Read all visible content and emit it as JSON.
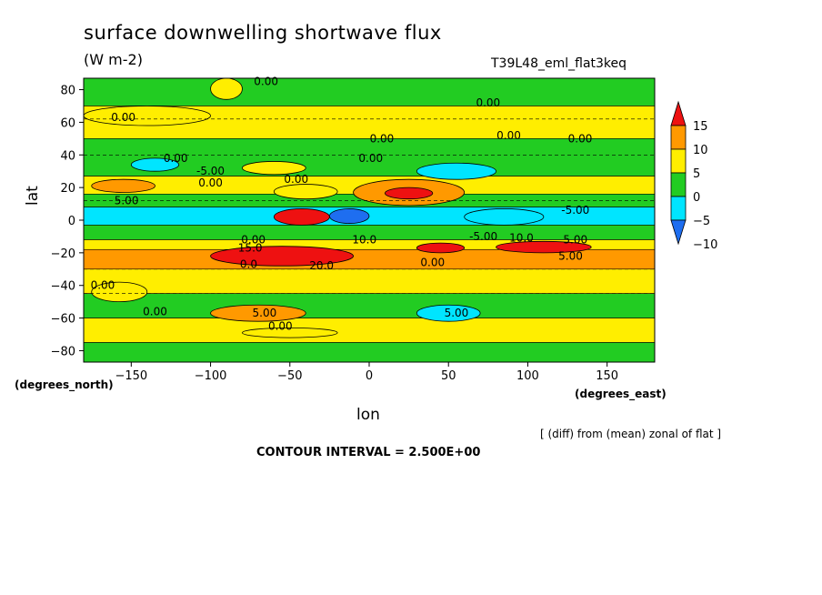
{
  "header": {
    "title": "surface downwelling shortwave flux",
    "units": "(W m-2)",
    "run": "T39L48_eml_flat3keq"
  },
  "footer": {
    "footnote": "[ (diff) from (mean) zonal of flat ]",
    "contour_interval": "CONTOUR INTERVAL = 2.500E+00"
  },
  "chart_data": {
    "type": "heatmap",
    "title": "surface downwelling shortwave flux",
    "units": "(W m-2)",
    "run": "T39L48_eml_flat3keq",
    "xlabel": "lon",
    "ylabel": "lat",
    "xunit": "(degrees_east)",
    "yunit": "(degrees_north)",
    "xlim": [
      -180,
      180
    ],
    "ylim": [
      -87,
      87
    ],
    "xticks": [
      -150,
      -100,
      -50,
      0,
      50,
      100,
      150
    ],
    "yticks": [
      -80,
      -60,
      -40,
      -20,
      0,
      20,
      40,
      60,
      80
    ],
    "contour_interval": 2.5,
    "colorbar": {
      "levels": [
        -10,
        -5,
        0,
        5,
        10,
        15
      ],
      "colors": [
        "#1e6ef0",
        "#00e5ff",
        "#22cc22",
        "#ffee00",
        "#ff9900",
        "#ee1111"
      ],
      "arrow_colors": {
        "low": "#1e6ef0",
        "high": "#ee1111"
      }
    },
    "bands": [
      {
        "lat": [
          70,
          87
        ],
        "value": -2.5
      },
      {
        "lat": [
          50,
          70
        ],
        "value": 0
      },
      {
        "lat": [
          27,
          50
        ],
        "value": -2.5
      },
      {
        "lat": [
          16,
          27
        ],
        "value": 2.5
      },
      {
        "lat": [
          8,
          16
        ],
        "value": -2.5
      },
      {
        "lat": [
          -3,
          8
        ],
        "value": -6
      },
      {
        "lat": [
          -12,
          -3
        ],
        "value": -2.5
      },
      {
        "lat": [
          -18,
          -12
        ],
        "value": 2.5
      },
      {
        "lat": [
          -30,
          -18
        ],
        "value": 7.5
      },
      {
        "lat": [
          -45,
          -30
        ],
        "value": 0
      },
      {
        "lat": [
          -60,
          -45
        ],
        "value": -2.5
      },
      {
        "lat": [
          -75,
          -60
        ],
        "value": 0
      },
      {
        "lat": [
          -87,
          -75
        ],
        "value": -2.5
      }
    ],
    "features": [
      {
        "lon": [
          -180,
          -100
        ],
        "lat": [
          58,
          70
        ],
        "value": 0
      },
      {
        "lon": [
          -100,
          -80
        ],
        "lat": [
          74,
          87
        ],
        "value": 0
      },
      {
        "lon": [
          -150,
          -120
        ],
        "lat": [
          30,
          38
        ],
        "value": -7.5
      },
      {
        "lon": [
          -80,
          -40
        ],
        "lat": [
          28,
          36
        ],
        "value": 2.5
      },
      {
        "lon": [
          -175,
          -135
        ],
        "lat": [
          17,
          25
        ],
        "value": 7.5
      },
      {
        "lon": [
          -60,
          -20
        ],
        "lat": [
          13,
          22
        ],
        "value": 2.5
      },
      {
        "lon": [
          -10,
          60
        ],
        "lat": [
          9,
          25
        ],
        "value": 7.5
      },
      {
        "lon": [
          10,
          40
        ],
        "lat": [
          13,
          20
        ],
        "value": 15
      },
      {
        "lon": [
          30,
          80
        ],
        "lat": [
          25,
          35
        ],
        "value": -7.5
      },
      {
        "lon": [
          60,
          110
        ],
        "lat": [
          -3,
          7
        ],
        "value": -7.5
      },
      {
        "lon": [
          -60,
          -25
        ],
        "lat": [
          -3,
          7
        ],
        "value": 15
      },
      {
        "lon": [
          -25,
          0
        ],
        "lat": [
          -2,
          7
        ],
        "value": -12
      },
      {
        "lon": [
          -100,
          -10
        ],
        "lat": [
          -28,
          -16
        ],
        "value": 15
      },
      {
        "lon": [
          30,
          60
        ],
        "lat": [
          -20,
          -14
        ],
        "value": 15
      },
      {
        "lon": [
          80,
          140
        ],
        "lat": [
          -20,
          -13
        ],
        "value": 15
      },
      {
        "lon": [
          -100,
          -40
        ],
        "lat": [
          -62,
          -52
        ],
        "value": 7.5
      },
      {
        "lon": [
          -80,
          -20
        ],
        "lat": [
          -72,
          -66
        ],
        "value": 0
      },
      {
        "lon": [
          30,
          70
        ],
        "lat": [
          -62,
          -52
        ],
        "value": -7.5
      },
      {
        "lon": [
          -175,
          -140
        ],
        "lat": [
          -50,
          -38
        ],
        "value": 0
      }
    ],
    "contour_labels": [
      {
        "lon": -65,
        "lat": 85,
        "text": "0.00"
      },
      {
        "lon": 75,
        "lat": 72,
        "text": "0.00"
      },
      {
        "lon": -155,
        "lat": 63,
        "text": "0.00"
      },
      {
        "lon": 8,
        "lat": 50,
        "text": "0.00"
      },
      {
        "lon": 88,
        "lat": 52,
        "text": "0.00"
      },
      {
        "lon": 133,
        "lat": 50,
        "text": "0.00"
      },
      {
        "lon": -122,
        "lat": 38,
        "text": "0.00"
      },
      {
        "lon": -100,
        "lat": 30,
        "text": "-5.00"
      },
      {
        "lon": -100,
        "lat": 23,
        "text": "0.00"
      },
      {
        "lon": 1,
        "lat": 38,
        "text": "0.00"
      },
      {
        "lon": -46,
        "lat": 25,
        "text": "0.00"
      },
      {
        "lon": -153,
        "lat": 12,
        "text": "5.00"
      },
      {
        "lon": 130,
        "lat": 6,
        "text": "-5.00"
      },
      {
        "lon": -73,
        "lat": -12,
        "text": "0.00"
      },
      {
        "lon": -75,
        "lat": -17,
        "text": "15.0"
      },
      {
        "lon": -3,
        "lat": -12,
        "text": "10.0"
      },
      {
        "lon": 72,
        "lat": -10,
        "text": "-5.00"
      },
      {
        "lon": 96,
        "lat": -11,
        "text": "10.0"
      },
      {
        "lon": 130,
        "lat": -12,
        "text": "5.00"
      },
      {
        "lon": 127,
        "lat": -22,
        "text": "5.00"
      },
      {
        "lon": -76,
        "lat": -27,
        "text": "0.0"
      },
      {
        "lon": -30,
        "lat": -28,
        "text": "20.0"
      },
      {
        "lon": 40,
        "lat": -26,
        "text": "0.00"
      },
      {
        "lon": -168,
        "lat": -40,
        "text": "0.00"
      },
      {
        "lon": -135,
        "lat": -56,
        "text": "0.00"
      },
      {
        "lon": -66,
        "lat": -57,
        "text": "5.00"
      },
      {
        "lon": -56,
        "lat": -65,
        "text": "0.00"
      },
      {
        "lon": 55,
        "lat": -57,
        "text": "5.00"
      }
    ]
  }
}
